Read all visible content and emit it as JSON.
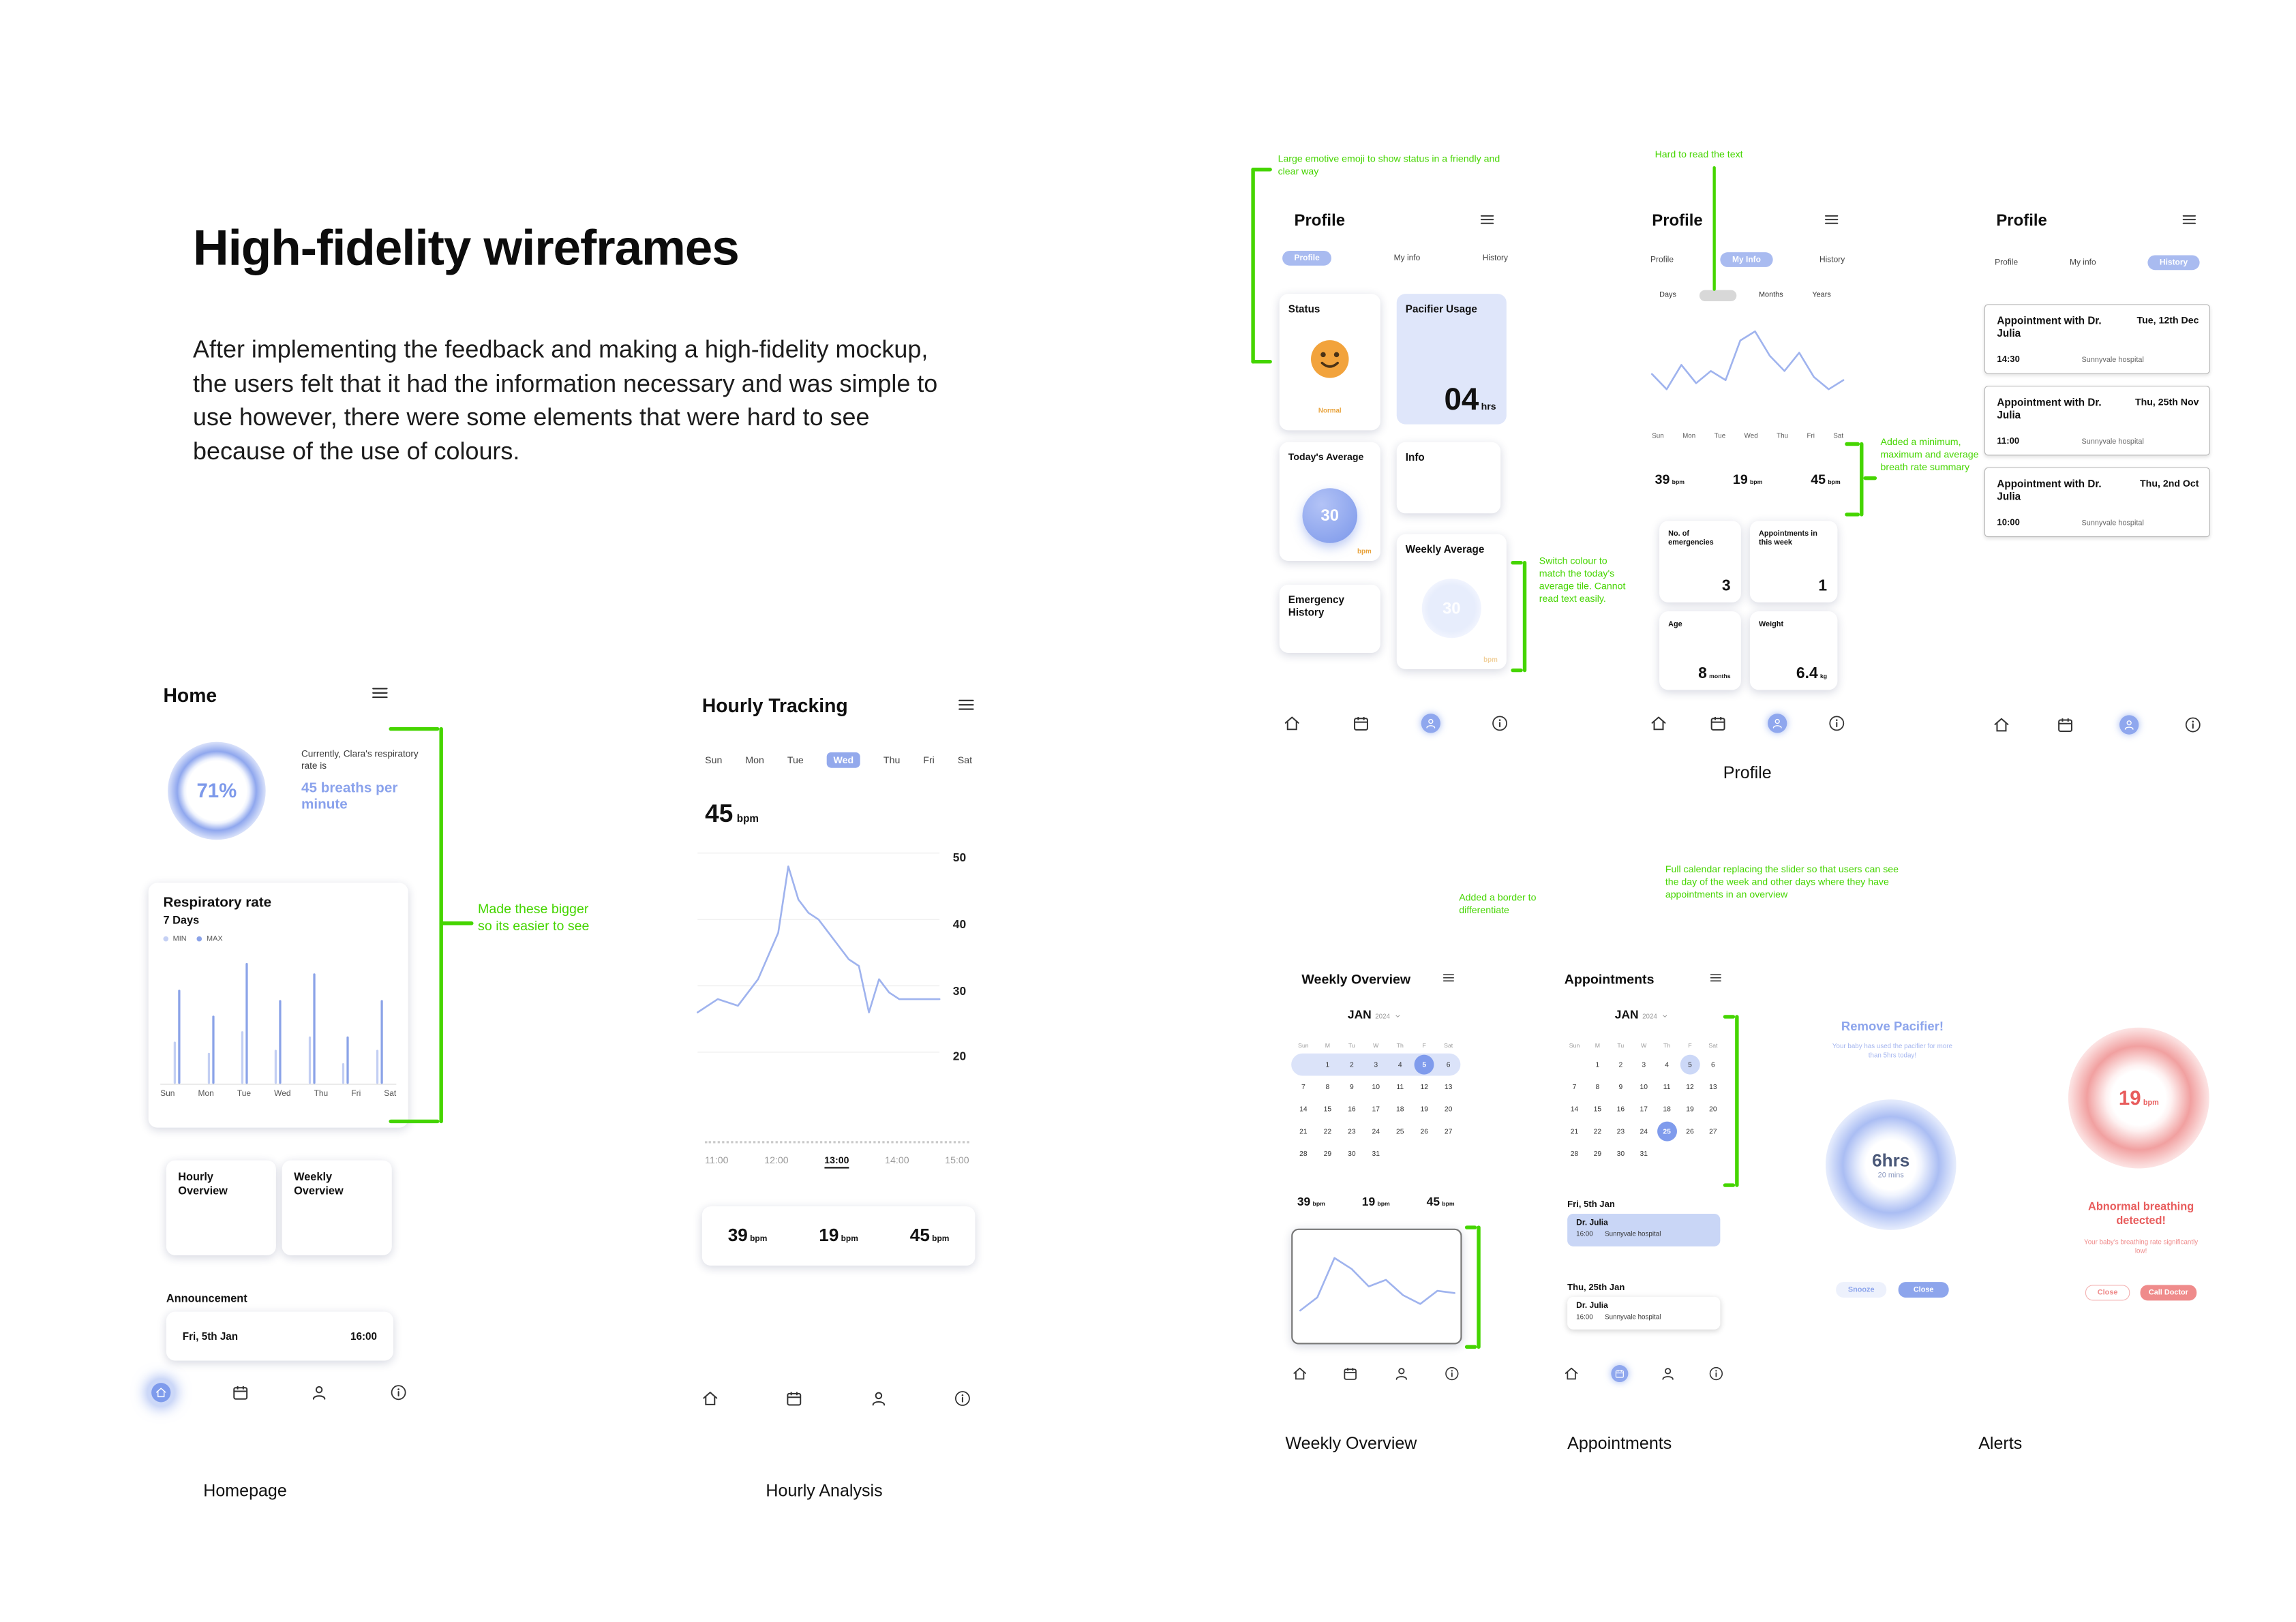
{
  "colors": {
    "accent_blue": "#8ba3e8",
    "light_blue": "#dfe6fa",
    "calendar_highlight": "#7f9bec",
    "annotation_green": "#45d500",
    "alert_red": "#e85c5c",
    "alert_pink": "#ef8b8b",
    "emoji_orange": "#f2a33c"
  },
  "header": {
    "title": "High-fidelity wireframes",
    "description": "After implementing the feedback and making a high-fidelity mockup, the users felt that it had the information necessary and was simple to use however, there were some elements that were hard to see because of the use of colours."
  },
  "captions": {
    "homepage": "Homepage",
    "hourly": "Hourly Analysis",
    "profile": "Profile",
    "weekly": "Weekly Overview",
    "appointments": "Appointments",
    "alerts": "Alerts"
  },
  "annotations": {
    "emoji": "Large emotive emoji to show status in a friendly and clear way",
    "hard_to_read": "Hard to read the text",
    "breath_summary": "Added a minimum, maximum and average breath rate summary",
    "switch_colour": "Switch colour to match the today's average tile. Cannot read text easily.",
    "bigger": "Made these bigger so its easier to see",
    "border": "Added a border to differentiate",
    "full_calendar": "Full calendar replacing the slider so that users can see the day of the week and other days where they have appointments in an overview"
  },
  "home": {
    "title": "Home",
    "percent": "71%",
    "status_intro": "Currently, Clara's respiratory rate is",
    "status_value": "45 breaths per minute",
    "chart_title": "Respiratory rate",
    "chart_subtitle": "7 Days",
    "legend_min": "MIN",
    "legend_max": "MAX",
    "days": [
      "Sun",
      "Mon",
      "Tue",
      "Wed",
      "Thu",
      "Fri",
      "Sat"
    ],
    "btn_hourly": "Hourly Overview",
    "btn_weekly": "Weekly Overview",
    "announcement_label": "Announcement",
    "announcement_date": "Fri, 5th Jan",
    "announcement_time": "16:00"
  },
  "hourly": {
    "title": "Hourly Tracking",
    "days": [
      "Sun",
      "Mon",
      "Tue",
      "Wed",
      "Thu",
      "Fri",
      "Sat"
    ],
    "selected_day": "Wed",
    "bpm_value": "45",
    "bpm_unit": "bpm",
    "yticks": [
      "50",
      "40",
      "30",
      "20"
    ],
    "xticks": [
      "11:00",
      "12:00",
      "13:00",
      "14:00",
      "15:00"
    ],
    "selected_time": "13:00",
    "stats": [
      {
        "value": "39",
        "unit": "bpm"
      },
      {
        "value": "19",
        "unit": "bpm"
      },
      {
        "value": "45",
        "unit": "bpm"
      }
    ]
  },
  "profile1": {
    "title": "Profile",
    "tabs": [
      "Profile",
      "My info",
      "History"
    ],
    "status_label": "Status",
    "status_value": "Normal",
    "pacifier_label": "Pacifier Usage",
    "pacifier_value": "04",
    "pacifier_unit": "hrs",
    "today_label": "Today's Average",
    "today_value": "30",
    "today_unit": "bpm",
    "info_label": "Info",
    "weekly_label": "Weekly Average",
    "weekly_value": "30",
    "weekly_unit": "bpm",
    "emergency_label": "Emergency History"
  },
  "profile2": {
    "title": "Profile",
    "tabs": [
      "Profile",
      "My Info",
      "History"
    ],
    "range_options": [
      "Days",
      "Months",
      "Years"
    ],
    "days": [
      "Sun",
      "Mon",
      "Tue",
      "Wed",
      "Thu",
      "Fri",
      "Sat"
    ],
    "stats": [
      {
        "value": "39",
        "unit": "bpm"
      },
      {
        "value": "19",
        "unit": "bpm"
      },
      {
        "value": "45",
        "unit": "bpm"
      }
    ],
    "cards": [
      {
        "label": "No. of emergencies",
        "value": "3",
        "unit": ""
      },
      {
        "label": "Appointments in this week",
        "value": "1",
        "unit": ""
      },
      {
        "label": "Age",
        "value": "8",
        "unit": "months"
      },
      {
        "label": "Weight",
        "value": "6.4",
        "unit": "kg"
      }
    ]
  },
  "profile3": {
    "title": "Profile",
    "tabs": [
      "Profile",
      "My info",
      "History"
    ],
    "appointments": [
      {
        "title": "Appointment with Dr. Julia",
        "date": "Tue, 12th Dec",
        "time": "14:30",
        "location": "Sunnyvale hospital"
      },
      {
        "title": "Appointment with Dr. Julia",
        "date": "Thu, 25th Nov",
        "time": "11:00",
        "location": "Sunnyvale hospital"
      },
      {
        "title": "Appointment with Dr. Julia",
        "date": "Thu, 2nd Oct",
        "time": "10:00",
        "location": "Sunnyvale hospital"
      }
    ]
  },
  "weekly": {
    "title": "Weekly Overview",
    "month": "JAN",
    "year": "2024",
    "cal_headers": [
      "Sun",
      "M",
      "Tu",
      "W",
      "Th",
      "F",
      "Sat"
    ],
    "weeks": [
      [
        "",
        "1",
        "2",
        "3",
        "4",
        "5",
        "6"
      ],
      [
        "7",
        "8",
        "9",
        "10",
        "11",
        "12",
        "13"
      ],
      [
        "14",
        "15",
        "16",
        "17",
        "18",
        "19",
        "20"
      ],
      [
        "21",
        "22",
        "23",
        "24",
        "25",
        "26",
        "27"
      ],
      [
        "28",
        "29",
        "30",
        "31",
        "",
        "",
        ""
      ]
    ],
    "highlight_day": "5",
    "highlight_week": 0,
    "stats": [
      {
        "value": "39",
        "unit": "bpm"
      },
      {
        "value": "19",
        "unit": "bpm"
      },
      {
        "value": "45",
        "unit": "bpm"
      }
    ]
  },
  "appts": {
    "title": "Appointments",
    "month": "JAN",
    "year": "2024",
    "cal_headers": [
      "Sun",
      "M",
      "Tu",
      "W",
      "Th",
      "F",
      "Sat"
    ],
    "weeks": [
      [
        "",
        "1",
        "2",
        "3",
        "4",
        "5",
        "6"
      ],
      [
        "7",
        "8",
        "9",
        "10",
        "11",
        "12",
        "13"
      ],
      [
        "14",
        "15",
        "16",
        "17",
        "18",
        "19",
        "20"
      ],
      [
        "21",
        "22",
        "23",
        "24",
        "25",
        "26",
        "27"
      ],
      [
        "28",
        "29",
        "30",
        "31",
        "",
        "",
        ""
      ]
    ],
    "highlight_day": "25",
    "highlight_day2": "5",
    "upcoming": [
      {
        "day": "Fri, 5th Jan",
        "doctor": "Dr. Julia",
        "time": "16:00",
        "location": "Sunnyvale hospital"
      },
      {
        "day": "Thu, 25th Jan",
        "doctor": "Dr. Julia",
        "time": "16:00",
        "location": "Sunnyvale hospital"
      }
    ]
  },
  "pacifier_alert": {
    "title": "Remove Pacifier!",
    "subtitle": "Your baby has used the pacifier for more than 5hrs today!",
    "duration": "6hrs",
    "duration_sub": "20 mins",
    "btn_snooze": "Snooze",
    "btn_close": "Close"
  },
  "breathing_alert": {
    "value": "19",
    "unit": "bpm",
    "title": "Abnormal breathing detected!",
    "subtitle": "Your baby's breathing rate significantly low!",
    "btn_close": "Close",
    "btn_call": "Call Doctor"
  },
  "chart_data": [
    {
      "id": "respiratory_bars",
      "type": "bar",
      "title": "Respiratory rate - 7 Days",
      "categories": [
        "Sun",
        "Mon",
        "Tue",
        "Wed",
        "Thu",
        "Fri",
        "Sat"
      ],
      "series": [
        {
          "name": "MIN",
          "values": [
            16,
            12,
            20,
            13,
            18,
            8,
            13
          ]
        },
        {
          "name": "MAX",
          "values": [
            36,
            26,
            46,
            32,
            42,
            18,
            32
          ]
        }
      ],
      "ylim": [
        0,
        50
      ]
    },
    {
      "id": "hourly_line",
      "type": "line",
      "x": [
        0,
        1,
        2,
        3,
        4,
        4.5,
        5,
        5.5,
        6,
        6.5,
        7,
        7.5,
        8,
        8.5,
        9,
        9.5,
        10,
        11,
        12
      ],
      "values": [
        26,
        28,
        27,
        31,
        38,
        48,
        43,
        41,
        40,
        38,
        36,
        34,
        33,
        26,
        31,
        29,
        28,
        28,
        28
      ],
      "ylim": [
        14,
        52
      ],
      "yticks": [
        50,
        40,
        30,
        20
      ],
      "xticks": [
        "11:00",
        "12:00",
        "13:00",
        "14:00",
        "15:00"
      ]
    },
    {
      "id": "profile_line",
      "type": "line",
      "x": [
        0,
        1,
        2,
        3,
        4,
        5,
        6,
        7,
        8,
        9,
        10,
        11,
        12,
        13
      ],
      "values": [
        32,
        27,
        35,
        29,
        33,
        30,
        43,
        46,
        38,
        33,
        39,
        31,
        27,
        30
      ],
      "ylim": [
        15,
        52
      ]
    },
    {
      "id": "weekly_line",
      "type": "line",
      "x": [
        0,
        1,
        2,
        3,
        4,
        5,
        6,
        7,
        8,
        9
      ],
      "values": [
        20,
        26,
        44,
        39,
        31,
        34,
        27,
        23,
        29,
        28
      ],
      "ylim": [
        10,
        52
      ]
    }
  ]
}
